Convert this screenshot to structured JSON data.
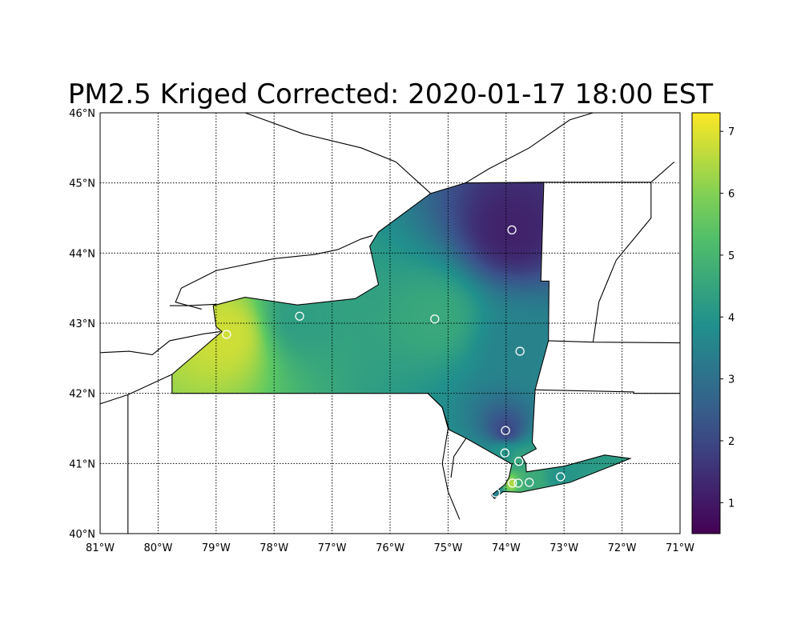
{
  "chart_data": {
    "type": "heatmap",
    "title": "PM2.5 Kriged Corrected: 2020-01-17 18:00 EST",
    "xlim": [
      -81,
      -71
    ],
    "ylim": [
      40,
      46
    ],
    "x_ticks": [
      "81°W",
      "80°W",
      "79°W",
      "78°W",
      "77°W",
      "76°W",
      "75°W",
      "74°W",
      "73°W",
      "72°W",
      "71°W"
    ],
    "y_ticks": [
      "40°N",
      "41°N",
      "42°N",
      "43°N",
      "44°N",
      "45°N",
      "46°N"
    ],
    "grid": true,
    "colormap": "viridis",
    "colorbar": {
      "range": [
        0.5,
        7.3
      ],
      "ticks": [
        "1",
        "2",
        "3",
        "4",
        "5",
        "6",
        "7"
      ],
      "placement": "right"
    },
    "stations": [
      {
        "lon": -73.9,
        "lat": 44.33,
        "value": 1.2
      },
      {
        "lon": -77.56,
        "lat": 43.1,
        "value": 4.3
      },
      {
        "lon": -75.23,
        "lat": 43.06,
        "value": 4.6
      },
      {
        "lon": -78.82,
        "lat": 42.84,
        "value": 6.8
      },
      {
        "lon": -73.76,
        "lat": 42.6,
        "value": 3.5
      },
      {
        "lon": -74.01,
        "lat": 41.47,
        "value": 2.0
      },
      {
        "lon": -74.02,
        "lat": 41.15,
        "value": 4.0
      },
      {
        "lon": -73.78,
        "lat": 41.03,
        "value": 4.5
      },
      {
        "lon": -73.89,
        "lat": 40.72,
        "value": 6.5
      },
      {
        "lon": -73.79,
        "lat": 40.72,
        "value": 4.8
      },
      {
        "lon": -73.6,
        "lat": 40.73,
        "value": 4.6
      },
      {
        "lon": -73.06,
        "lat": 40.81,
        "value": 4.0
      },
      {
        "lon": -74.18,
        "lat": 40.58,
        "value": 3.5
      }
    ]
  }
}
